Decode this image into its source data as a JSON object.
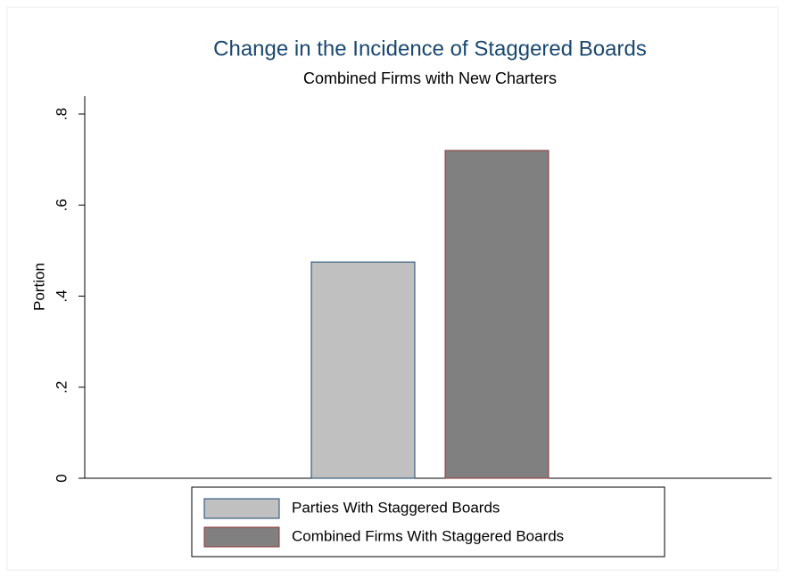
{
  "chart_data": {
    "type": "bar",
    "title": "Change in the Incidence of Staggered Boards",
    "subtitle": "Combined Firms with New Charters",
    "ylabel": "Portion",
    "series": [
      {
        "name": "Parties With Staggered Boards",
        "color": "#c0c0c0",
        "edgecolor": "#1a476f",
        "values": [
          0.475
        ]
      },
      {
        "name": "Combined Firms With Staggered Boards",
        "color": "#808080",
        "edgecolor": "#90353b",
        "values": [
          0.72
        ]
      }
    ],
    "ylim": [
      0,
      0.8
    ],
    "yticks": [
      0,
      {
        "value": 0.2,
        "label": ".2"
      },
      {
        "value": 0.4,
        "label": ".4"
      },
      {
        "value": 0.6,
        "label": ".6"
      },
      {
        "value": 0.8,
        "label": ".8"
      }
    ],
    "grid": false,
    "legend": "bottom"
  }
}
